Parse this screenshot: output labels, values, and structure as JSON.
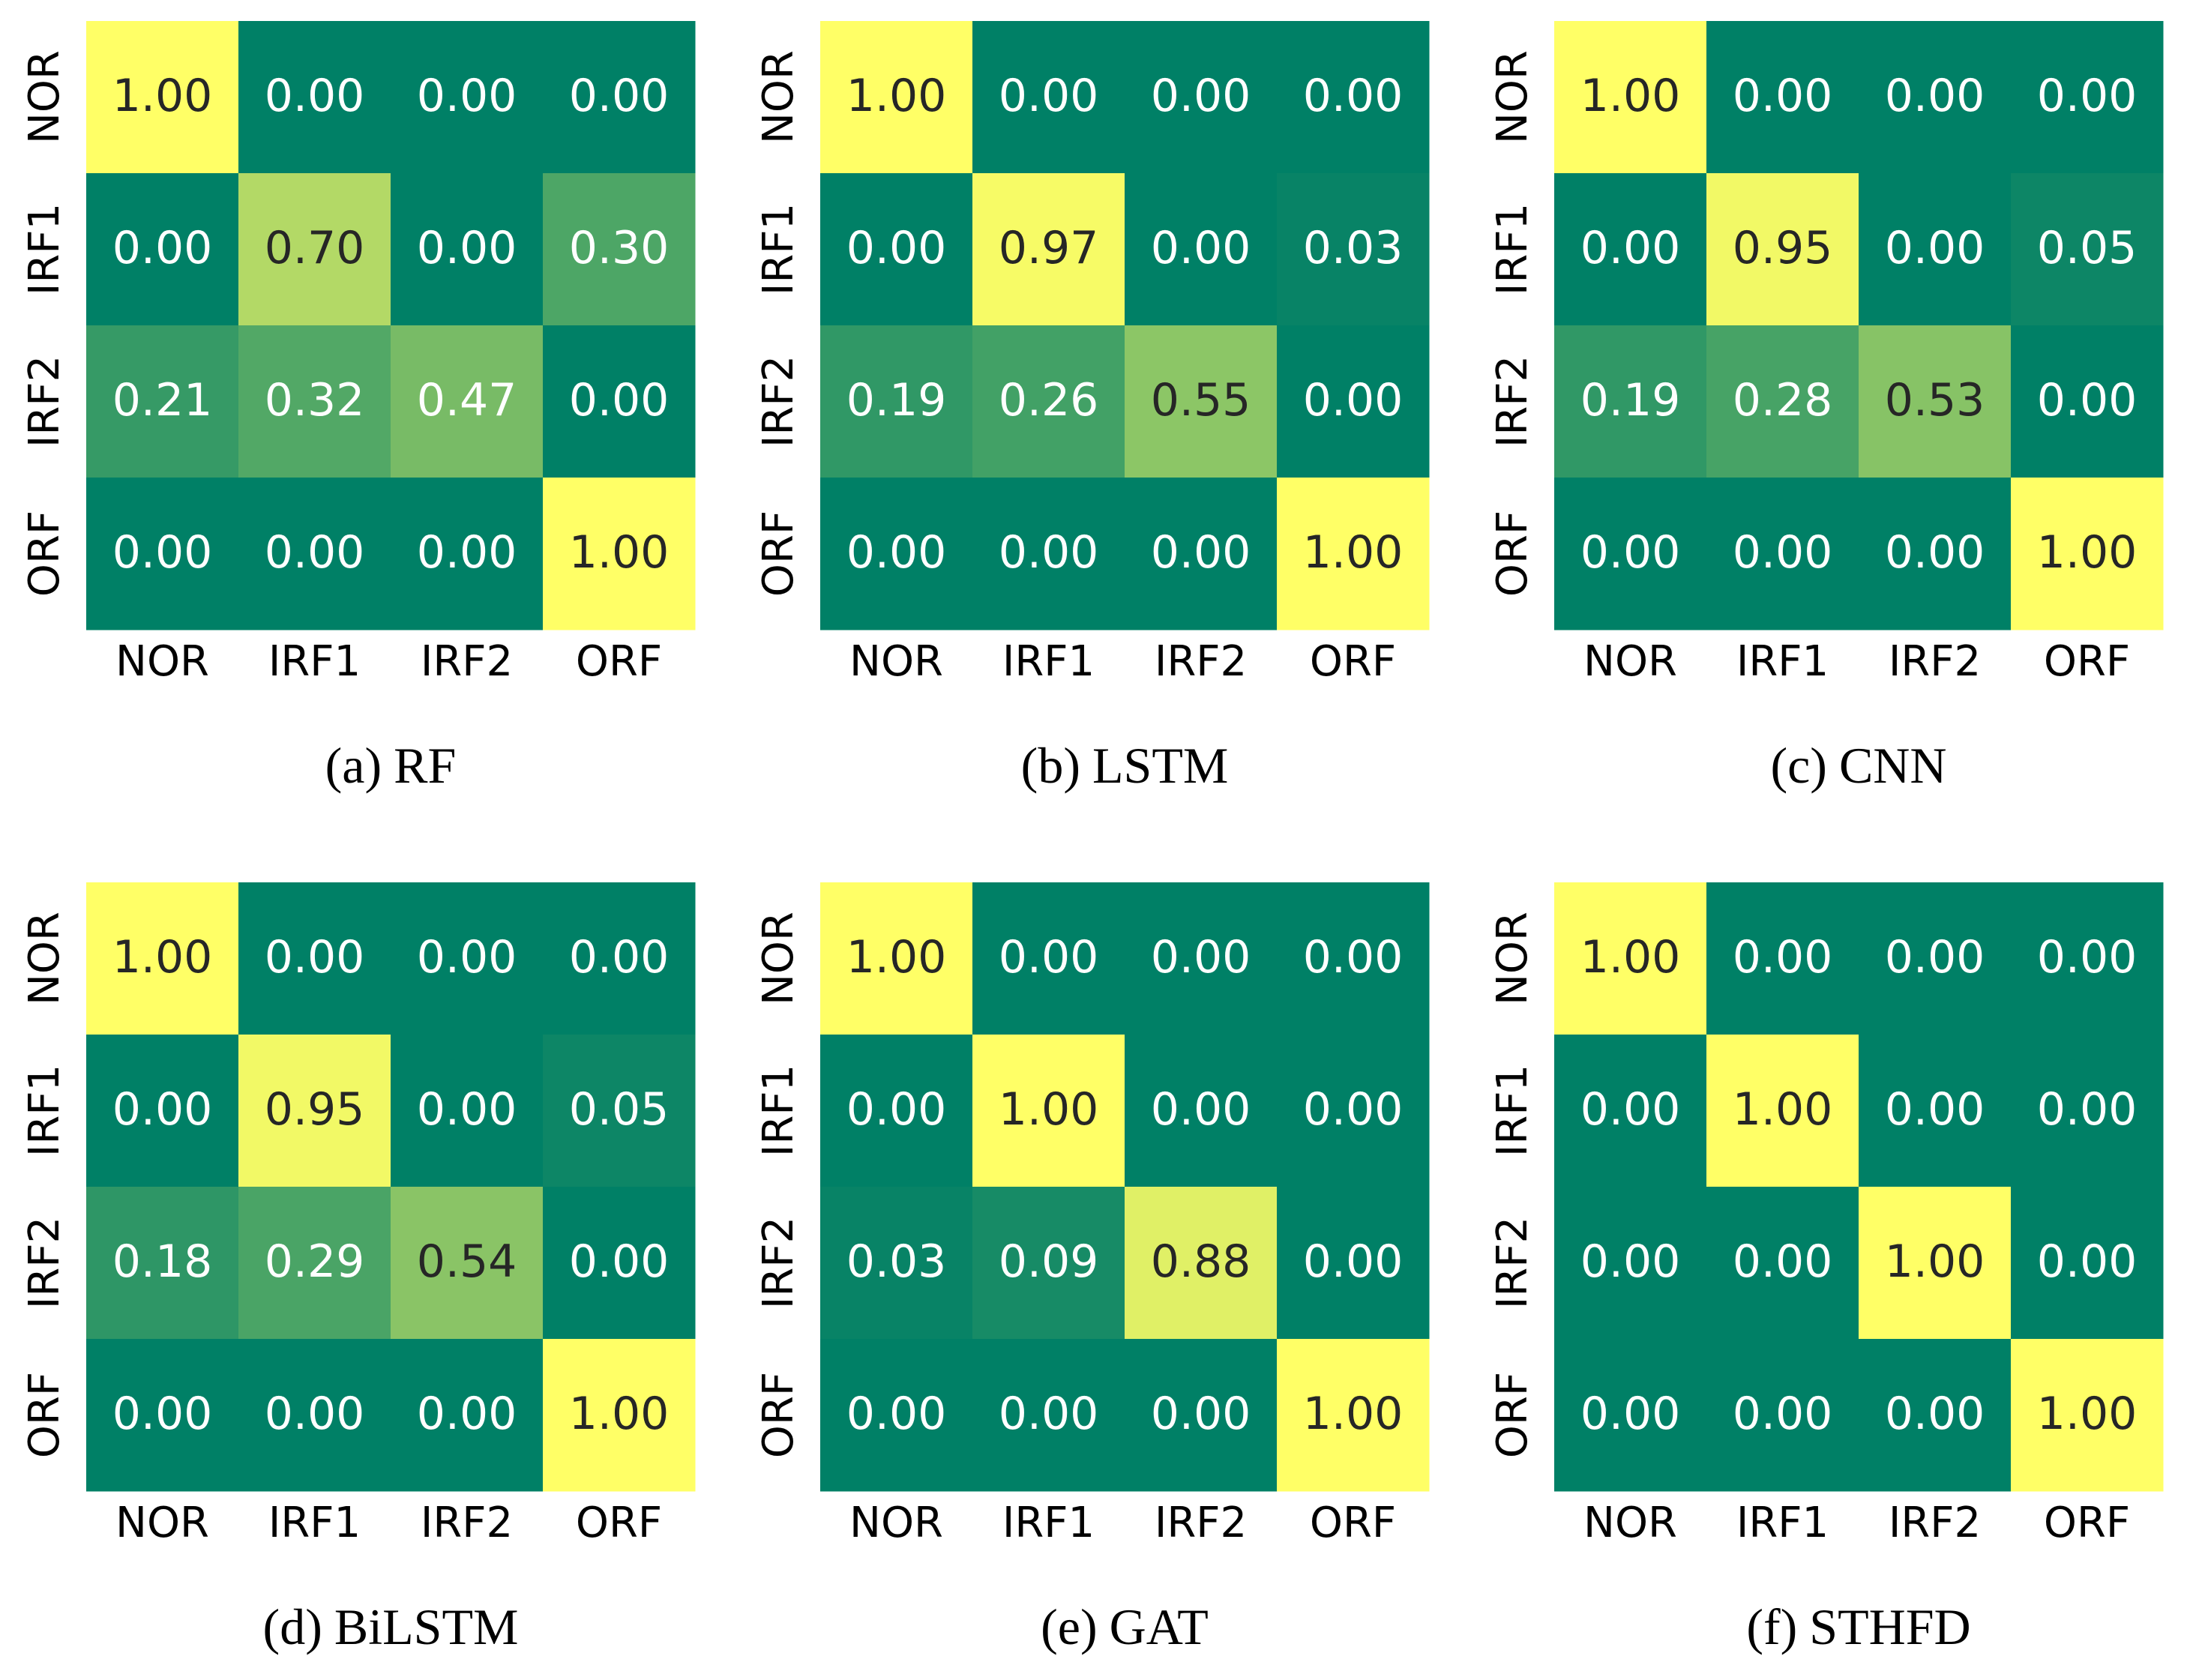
{
  "chart_data": [
    {
      "type": "heatmap",
      "caption": "(a)",
      "title": "RF",
      "colormap": "summer",
      "clim": [
        0,
        1
      ],
      "x_categories": [
        "NOR",
        "IRF1",
        "IRF2",
        "ORF"
      ],
      "y_categories": [
        "NOR",
        "IRF1",
        "IRF2",
        "ORF"
      ],
      "values": [
        [
          1,
          0,
          0,
          0
        ],
        [
          0,
          0.7,
          0,
          0.3
        ],
        [
          0.21,
          0.32,
          0.47,
          0
        ],
        [
          0,
          0,
          0,
          1
        ]
      ],
      "value_labels": [
        [
          "1.00",
          "0.00",
          "0.00",
          "0.00"
        ],
        [
          "0.00",
          "0.70",
          "0.00",
          "0.30"
        ],
        [
          "0.21",
          "0.32",
          "0.47",
          "0.00"
        ],
        [
          "0.00",
          "0.00",
          "0.00",
          "1.00"
        ]
      ]
    },
    {
      "type": "heatmap",
      "caption": "(b)",
      "title": "LSTM",
      "colormap": "summer",
      "clim": [
        0,
        1
      ],
      "x_categories": [
        "NOR",
        "IRF1",
        "IRF2",
        "ORF"
      ],
      "y_categories": [
        "NOR",
        "IRF1",
        "IRF2",
        "ORF"
      ],
      "values": [
        [
          1,
          0,
          0,
          0
        ],
        [
          0,
          0.97,
          0,
          0.03
        ],
        [
          0.19,
          0.26,
          0.55,
          0
        ],
        [
          0,
          0,
          0,
          1
        ]
      ],
      "value_labels": [
        [
          "1.00",
          "0.00",
          "0.00",
          "0.00"
        ],
        [
          "0.00",
          "0.97",
          "0.00",
          "0.03"
        ],
        [
          "0.19",
          "0.26",
          "0.55",
          "0.00"
        ],
        [
          "0.00",
          "0.00",
          "0.00",
          "1.00"
        ]
      ]
    },
    {
      "type": "heatmap",
      "caption": "(c)",
      "title": "CNN",
      "colormap": "summer",
      "clim": [
        0,
        1
      ],
      "x_categories": [
        "NOR",
        "IRF1",
        "IRF2",
        "ORF"
      ],
      "y_categories": [
        "NOR",
        "IRF1",
        "IRF2",
        "ORF"
      ],
      "values": [
        [
          1,
          0,
          0,
          0
        ],
        [
          0,
          0.95,
          0,
          0.05
        ],
        [
          0.19,
          0.28,
          0.53,
          0
        ],
        [
          0,
          0,
          0,
          1
        ]
      ],
      "value_labels": [
        [
          "1.00",
          "0.00",
          "0.00",
          "0.00"
        ],
        [
          "0.00",
          "0.95",
          "0.00",
          "0.05"
        ],
        [
          "0.19",
          "0.28",
          "0.53",
          "0.00"
        ],
        [
          "0.00",
          "0.00",
          "0.00",
          "1.00"
        ]
      ]
    },
    {
      "type": "heatmap",
      "caption": "(d)",
      "title": "BiLSTM",
      "colormap": "summer",
      "clim": [
        0,
        1
      ],
      "x_categories": [
        "NOR",
        "IRF1",
        "IRF2",
        "ORF"
      ],
      "y_categories": [
        "NOR",
        "IRF1",
        "IRF2",
        "ORF"
      ],
      "values": [
        [
          1,
          0,
          0,
          0
        ],
        [
          0,
          0.95,
          0,
          0.05
        ],
        [
          0.18,
          0.29,
          0.54,
          0
        ],
        [
          0,
          0,
          0,
          1
        ]
      ],
      "value_labels": [
        [
          "1.00",
          "0.00",
          "0.00",
          "0.00"
        ],
        [
          "0.00",
          "0.95",
          "0.00",
          "0.05"
        ],
        [
          "0.18",
          "0.29",
          "0.54",
          "0.00"
        ],
        [
          "0.00",
          "0.00",
          "0.00",
          "1.00"
        ]
      ]
    },
    {
      "type": "heatmap",
      "caption": "(e)",
      "title": "GAT",
      "colormap": "summer",
      "clim": [
        0,
        1
      ],
      "x_categories": [
        "NOR",
        "IRF1",
        "IRF2",
        "ORF"
      ],
      "y_categories": [
        "NOR",
        "IRF1",
        "IRF2",
        "ORF"
      ],
      "values": [
        [
          1,
          0,
          0,
          0
        ],
        [
          0,
          1,
          0,
          0
        ],
        [
          0.03,
          0.09,
          0.88,
          0
        ],
        [
          0,
          0,
          0,
          1
        ]
      ],
      "value_labels": [
        [
          "1.00",
          "0.00",
          "0.00",
          "0.00"
        ],
        [
          "0.00",
          "1.00",
          "0.00",
          "0.00"
        ],
        [
          "0.03",
          "0.09",
          "0.88",
          "0.00"
        ],
        [
          "0.00",
          "0.00",
          "0.00",
          "1.00"
        ]
      ]
    },
    {
      "type": "heatmap",
      "caption": "(f)",
      "title": "STHFD",
      "colormap": "summer",
      "clim": [
        0,
        1
      ],
      "x_categories": [
        "NOR",
        "IRF1",
        "IRF2",
        "ORF"
      ],
      "y_categories": [
        "NOR",
        "IRF1",
        "IRF2",
        "ORF"
      ],
      "values": [
        [
          1,
          0,
          0,
          0
        ],
        [
          0,
          1,
          0,
          0
        ],
        [
          0,
          0,
          1,
          0
        ],
        [
          0,
          0,
          0,
          1
        ]
      ],
      "value_labels": [
        [
          "1.00",
          "0.00",
          "0.00",
          "0.00"
        ],
        [
          "0.00",
          "1.00",
          "0.00",
          "0.00"
        ],
        [
          "0.00",
          "0.00",
          "1.00",
          "0.00"
        ],
        [
          "0.00",
          "0.00",
          "0.00",
          "1.00"
        ]
      ]
    }
  ]
}
